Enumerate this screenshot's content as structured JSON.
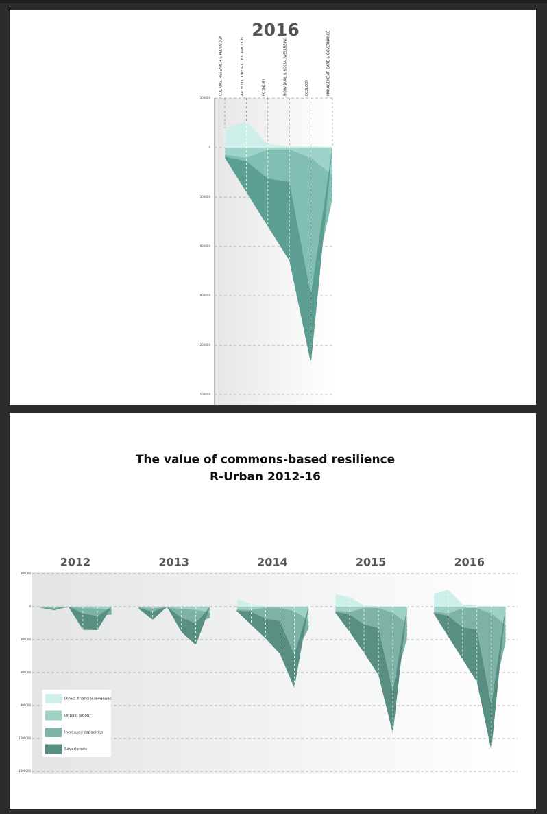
{
  "chart_data": [
    {
      "type": "area",
      "title": "2016",
      "categories": [
        "CULTURE, RESEARCH & PEDAGOGY",
        "ARCHITECTURE & CONSTRUCTION",
        "ECONOMY",
        "INDIVIDUAL & SOCIAL WELLBEING",
        "ECOLOGY",
        "MANAGEMENT, CARE & GOVERNANCE"
      ],
      "series": [
        {
          "name": "Direct financial revenues",
          "color": "#cdeee9",
          "values": [
            117000,
            158000,
            21000,
            8000,
            8000,
            5000
          ]
        },
        {
          "name": "Unpaid labour",
          "color": "#9fd3c9",
          "values": [
            -42000,
            -62000,
            -12000,
            -12000,
            -62000,
            -167000
          ]
        },
        {
          "name": "Increased capacities",
          "color": "#82bfb3",
          "values": [
            -12000,
            -21000,
            -175000,
            -196000,
            -833000,
            -146000
          ]
        },
        {
          "name": "Saved costs",
          "color": "#5c9e92",
          "values": [
            -8000,
            -188000,
            -292000,
            -479000,
            -417000,
            0
          ]
        }
      ],
      "ylim": [
        -1500000,
        300000
      ],
      "yticks": [
        300000,
        0,
        {
          "value": -300000,
          "label": "300000"
        },
        {
          "value": -600000,
          "label": "600000"
        },
        {
          "value": -900000,
          "label": "900000"
        },
        {
          "value": -1200000,
          "label": "1200000"
        },
        {
          "value": -1500000,
          "label": "1500000"
        }
      ]
    },
    {
      "type": "area-multiples",
      "title": "The value of commons-based resilience",
      "subtitle": "R-Urban 2012-16",
      "series": [
        {
          "name": "Direct financial revenues",
          "color": "#cdeee9"
        },
        {
          "name": "Unpaid labour",
          "color": "#9fd0c6"
        },
        {
          "name": "Increased capacities",
          "color": "#7fb2a6"
        },
        {
          "name": "Saved costs",
          "color": "#588f82"
        }
      ],
      "panels": [
        {
          "title": "2012",
          "values": [
            [
              0,
              0,
              0,
              0,
              0,
              0
            ],
            [
              -3000,
              -8000,
              -2000,
              -10000,
              -15000,
              -30000
            ],
            [
              -3000,
              -10000,
              -3000,
              -50000,
              -70000,
              -40000
            ],
            [
              -2000,
              -13000,
              0,
              -150000,
              -127000,
              0
            ]
          ]
        },
        {
          "title": "2013",
          "values": [
            [
              0,
              0,
              0,
              0,
              0,
              0
            ],
            [
              -5000,
              -15000,
              -5000,
              -20000,
              -30000,
              -50000
            ],
            [
              -5000,
              -30000,
              -5000,
              -80000,
              -120000,
              -50000
            ],
            [
              -5000,
              -74000,
              0,
              -130000,
              -200000,
              0
            ]
          ]
        },
        {
          "title": "2014",
          "values": [
            [
              69000,
              25000,
              5000,
              3000,
              2000,
              1000
            ],
            [
              -25000,
              -30000,
              -8000,
              -10000,
              -40000,
              -120000
            ],
            [
              -10000,
              -15000,
              -100000,
              -120000,
              -400000,
              -80000
            ],
            [
              -5000,
              -120000,
              -180000,
              -300000,
              -300000,
              0
            ]
          ]
        },
        {
          "title": "2015",
          "values": [
            [
              112000,
              87000,
              12000,
              6000,
              5000,
              3000
            ],
            [
              -35000,
              -50000,
              -10000,
              -12000,
              -55000,
              -150000
            ],
            [
              -10000,
              -20000,
              -150000,
              -180000,
              -720000,
              -130000
            ],
            [
              -8000,
              -160000,
              -260000,
              -430000,
              -380000,
              0
            ]
          ]
        },
        {
          "title": "2016",
          "values": [
            [
              117000,
              158000,
              21000,
              8000,
              8000,
              5000
            ],
            [
              -42000,
              -62000,
              -12000,
              -12000,
              -62000,
              -167000
            ],
            [
              -12000,
              -21000,
              -175000,
              -196000,
              -833000,
              -146000
            ],
            [
              -8000,
              -188000,
              -292000,
              -479000,
              -417000,
              0
            ]
          ]
        }
      ],
      "ylim": [
        -1500000,
        300000
      ],
      "yticks": [
        300000,
        0,
        {
          "value": -300000,
          "label": "300000"
        },
        {
          "value": -600000,
          "label": "600000"
        },
        {
          "value": -900000,
          "label": "900000"
        },
        {
          "value": -1200000,
          "label": "1200000"
        },
        {
          "value": -1500000,
          "label": "1500000"
        }
      ]
    }
  ]
}
